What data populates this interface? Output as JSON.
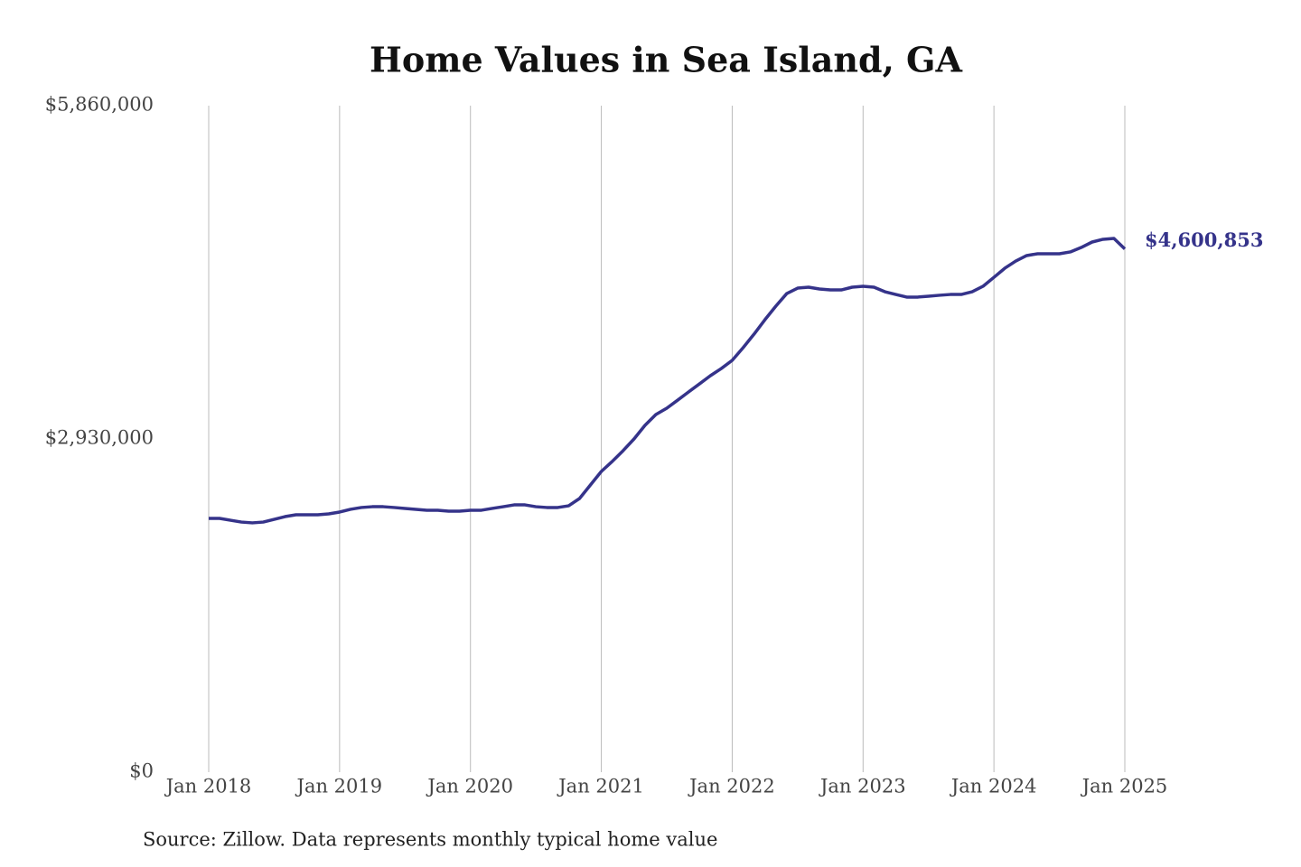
{
  "chart_data": {
    "type": "line",
    "title": "Home Values in Sea Island, GA",
    "source": "Source: Zillow. Data represents monthly typical home value",
    "categories": [
      "Jan 2018",
      null,
      null,
      null,
      null,
      null,
      null,
      null,
      null,
      null,
      null,
      null,
      "Jan 2019",
      null,
      null,
      null,
      null,
      null,
      null,
      null,
      null,
      null,
      null,
      null,
      "Jan 2020",
      null,
      null,
      null,
      null,
      null,
      null,
      null,
      null,
      null,
      null,
      null,
      "Jan 2021",
      null,
      null,
      null,
      null,
      null,
      null,
      null,
      null,
      null,
      null,
      null,
      "Jan 2022",
      null,
      null,
      null,
      null,
      null,
      null,
      null,
      null,
      null,
      null,
      null,
      "Jan 2023",
      null,
      null,
      null,
      null,
      null,
      null,
      null,
      null,
      null,
      null,
      null,
      "Jan 2024",
      null,
      null,
      null,
      null,
      null,
      null,
      null,
      null,
      null,
      null,
      null,
      "Jan 2025"
    ],
    "series": [
      {
        "name": "Typical home value",
        "color": "#35338a",
        "values": [
          2231000,
          2231000,
          2215000,
          2199000,
          2192000,
          2199000,
          2223000,
          2247000,
          2263000,
          2263000,
          2263000,
          2271000,
          2287000,
          2311000,
          2327000,
          2334000,
          2334000,
          2327000,
          2319000,
          2311000,
          2303000,
          2303000,
          2295000,
          2295000,
          2303000,
          2303000,
          2319000,
          2334000,
          2350000,
          2350000,
          2334000,
          2327000,
          2327000,
          2342000,
          2406000,
          2525000,
          2644000,
          2732000,
          2827000,
          2930000,
          3049000,
          3144000,
          3200000,
          3271000,
          3343000,
          3414000,
          3486000,
          3549000,
          3621000,
          3732000,
          3851000,
          3978000,
          4097000,
          4208000,
          4256000,
          4264000,
          4248000,
          4240000,
          4240000,
          4264000,
          4272000,
          4264000,
          4224000,
          4200000,
          4177000,
          4177000,
          4185000,
          4193000,
          4200000,
          4200000,
          4224000,
          4272000,
          4351000,
          4431000,
          4494000,
          4542000,
          4558000,
          4558000,
          4558000,
          4574000,
          4613000,
          4661000,
          4685000,
          4693000,
          4600853
        ],
        "value_labels": [
          null,
          null,
          null,
          null,
          null,
          null,
          null,
          null,
          null,
          null,
          null,
          null,
          null,
          null,
          null,
          null,
          null,
          null,
          null,
          null,
          null,
          null,
          null,
          null,
          null,
          null,
          null,
          null,
          null,
          null,
          null,
          null,
          null,
          null,
          null,
          null,
          null,
          null,
          null,
          null,
          null,
          null,
          null,
          null,
          null,
          null,
          null,
          null,
          null,
          null,
          null,
          null,
          null,
          null,
          null,
          null,
          null,
          null,
          null,
          null,
          null,
          null,
          null,
          null,
          null,
          null,
          null,
          null,
          null,
          null,
          null,
          null,
          null,
          null,
          null,
          null,
          null,
          null,
          null,
          null,
          null,
          null,
          null,
          null,
          "$4,600,853"
        ]
      }
    ],
    "ylim": [
      0,
      5860000
    ],
    "yticks": [
      {
        "value": 0,
        "label": "$0"
      },
      {
        "value": 2930000,
        "label": "$2,930,000"
      },
      {
        "value": 5860000,
        "label": "$5,860,000"
      }
    ],
    "grid": "x"
  }
}
